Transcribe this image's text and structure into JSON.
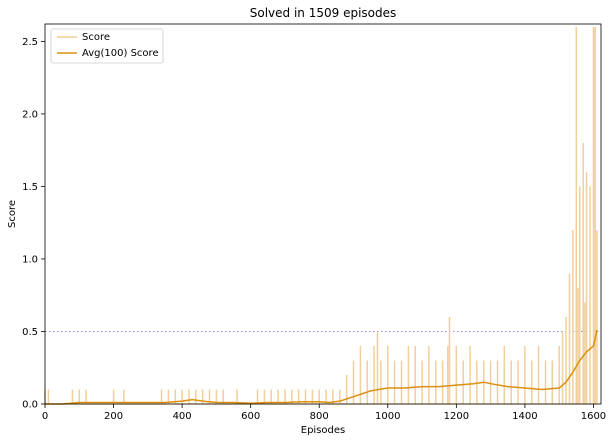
{
  "chart_data": {
    "type": "line",
    "title": "Solved in 1509 episodes",
    "xlabel": "Episodes",
    "ylabel": "Score",
    "xlim": [
      0,
      1622
    ],
    "ylim": [
      0,
      2.62
    ],
    "xticks": [
      0,
      200,
      400,
      600,
      800,
      1000,
      1200,
      1400,
      1600
    ],
    "yticks": [
      0.0,
      0.5,
      1.0,
      1.5,
      2.0,
      2.5
    ],
    "xtick_labels": [
      "0",
      "200",
      "400",
      "600",
      "800",
      "1000",
      "1200",
      "1400",
      "1600"
    ],
    "ytick_labels": [
      "0.0",
      "0.5",
      "1.0",
      "1.5",
      "2.0",
      "2.5"
    ],
    "grid": false,
    "legend_position": "top-left",
    "threshold": {
      "y": 0.5,
      "style": "dotted",
      "color": "#8888ee"
    },
    "series": [
      {
        "name": "Score",
        "color": "#f0cf9b",
        "style": "spiky",
        "x": [
          0,
          10,
          80,
          100,
          120,
          140,
          200,
          230,
          260,
          300,
          340,
          360,
          380,
          400,
          420,
          440,
          460,
          480,
          500,
          520,
          560,
          600,
          620,
          640,
          660,
          680,
          700,
          720,
          740,
          760,
          780,
          800,
          820,
          840,
          860,
          880,
          900,
          920,
          940,
          960,
          970,
          980,
          1000,
          1020,
          1040,
          1060,
          1080,
          1100,
          1120,
          1140,
          1160,
          1175,
          1180,
          1200,
          1220,
          1240,
          1260,
          1280,
          1300,
          1320,
          1340,
          1360,
          1380,
          1400,
          1420,
          1440,
          1460,
          1480,
          1500,
          1510,
          1520,
          1530,
          1540,
          1550,
          1555,
          1560,
          1570,
          1575,
          1580,
          1590,
          1600,
          1605,
          1610
        ],
        "y": [
          0.1,
          0.1,
          0.1,
          0.1,
          0.1,
          0.0,
          0.1,
          0.1,
          0.0,
          0.0,
          0.1,
          0.1,
          0.1,
          0.1,
          0.1,
          0.1,
          0.1,
          0.1,
          0.1,
          0.1,
          0.1,
          0.0,
          0.1,
          0.1,
          0.1,
          0.1,
          0.1,
          0.1,
          0.1,
          0.1,
          0.1,
          0.1,
          0.1,
          0.1,
          0.1,
          0.2,
          0.3,
          0.4,
          0.3,
          0.4,
          0.5,
          0.3,
          0.4,
          0.3,
          0.3,
          0.4,
          0.4,
          0.3,
          0.4,
          0.3,
          0.3,
          0.4,
          0.6,
          0.4,
          0.3,
          0.4,
          0.3,
          0.3,
          0.3,
          0.3,
          0.4,
          0.3,
          0.3,
          0.4,
          0.3,
          0.4,
          0.3,
          0.3,
          0.4,
          0.5,
          0.6,
          0.9,
          1.2,
          2.6,
          0.8,
          1.5,
          1.8,
          0.7,
          1.6,
          1.5,
          2.6,
          2.6,
          1.2
        ]
      },
      {
        "name": "Avg(100) Score",
        "color": "#db8f0f",
        "x": [
          0,
          50,
          100,
          150,
          200,
          250,
          300,
          350,
          400,
          430,
          460,
          500,
          550,
          600,
          650,
          700,
          750,
          800,
          830,
          860,
          900,
          950,
          1000,
          1050,
          1100,
          1150,
          1200,
          1250,
          1280,
          1300,
          1350,
          1400,
          1450,
          1500,
          1520,
          1540,
          1560,
          1580,
          1600,
          1610
        ],
        "y": [
          0.0,
          0.0,
          0.01,
          0.01,
          0.01,
          0.01,
          0.01,
          0.01,
          0.02,
          0.03,
          0.02,
          0.01,
          0.01,
          0.005,
          0.01,
          0.01,
          0.015,
          0.015,
          0.01,
          0.02,
          0.05,
          0.09,
          0.11,
          0.11,
          0.12,
          0.12,
          0.13,
          0.14,
          0.15,
          0.14,
          0.12,
          0.11,
          0.1,
          0.11,
          0.15,
          0.22,
          0.3,
          0.36,
          0.4,
          0.51
        ]
      }
    ]
  }
}
